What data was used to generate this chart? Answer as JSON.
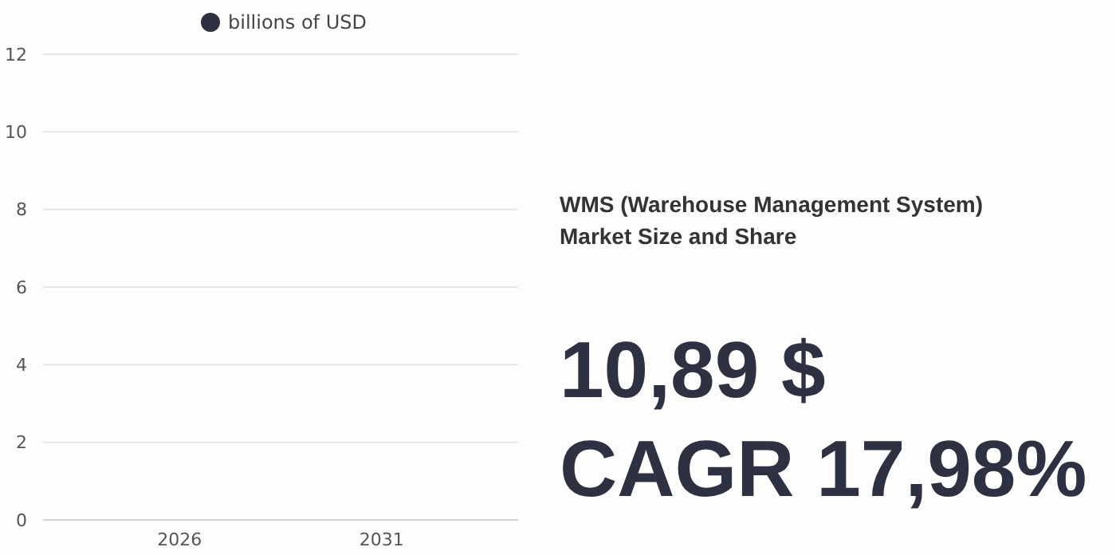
{
  "chart_data": {
    "type": "bar",
    "title": "WMS (Warehouse Management System) Market Size and Share",
    "categories": [
      "2026",
      "2031"
    ],
    "series": [
      {
        "name": "billions of USD",
        "color": "#2d3142",
        "values": [
          null,
          null
        ]
      }
    ],
    "ylim": [
      0,
      12
    ],
    "yticks": [
      0,
      2,
      4,
      6,
      8,
      10,
      12
    ],
    "grid": "y",
    "legend": "top",
    "annotations": [
      "10,89 $",
      "CAGR 17,98%"
    ]
  }
}
